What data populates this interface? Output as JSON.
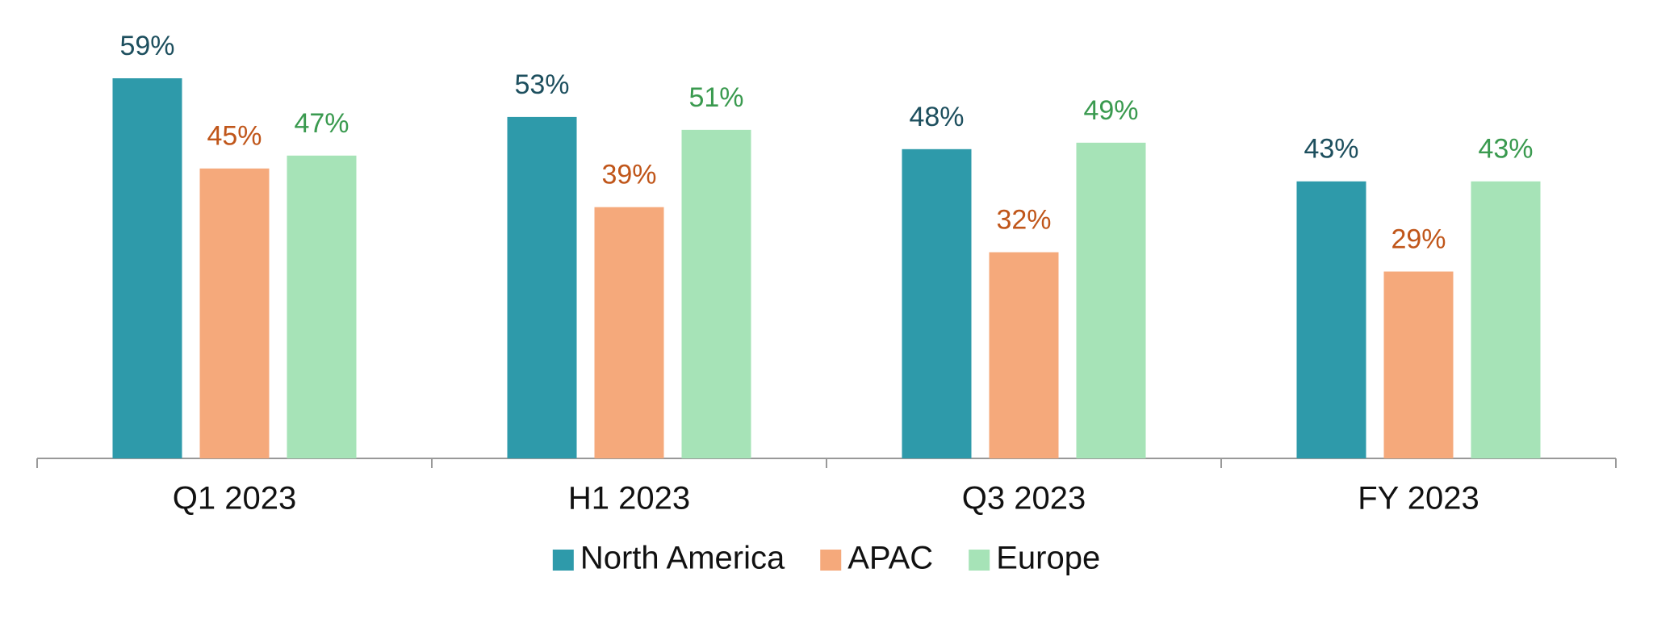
{
  "chart_data": {
    "type": "bar",
    "categories": [
      "Q1 2023",
      "H1 2023",
      "Q3 2023",
      "FY 2023"
    ],
    "series": [
      {
        "name": "North America",
        "color": "#2e9aaa",
        "label_color": "#1d4f5e",
        "values": [
          59,
          53,
          48,
          43
        ],
        "value_labels": [
          "59%",
          "53%",
          "48%",
          "43%"
        ]
      },
      {
        "name": "APAC",
        "color": "#f5a97b",
        "label_color": "#c0561a",
        "values": [
          45,
          39,
          32,
          29
        ],
        "value_labels": [
          "45%",
          "39%",
          "32%",
          "29%"
        ]
      },
      {
        "name": "Europe",
        "color": "#a6e3b7",
        "label_color": "#3a9a4f",
        "values": [
          47,
          51,
          49,
          43
        ],
        "value_labels": [
          "47%",
          "51%",
          "49%",
          "43%"
        ]
      }
    ],
    "legend": "bottom"
  }
}
